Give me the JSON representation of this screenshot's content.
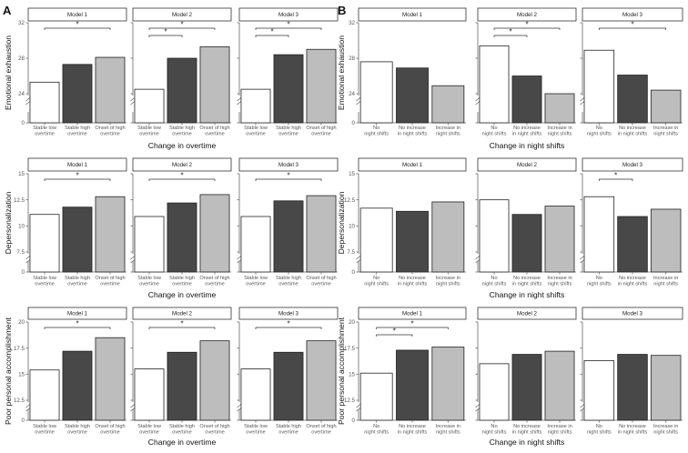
{
  "figure": {
    "panel_labels": [
      "A",
      "B"
    ],
    "colors": {
      "white": "#ffffff",
      "dark": "#484848",
      "light": "#bdbdbd",
      "axis": "#666666"
    }
  },
  "chart_data": [
    {
      "type": "bar",
      "panel": "A",
      "model": "Model 1",
      "ylabel": "Emotional exhaustion",
      "xlabel": "",
      "categories": [
        "Stable low overtime",
        "Stable high overtime",
        "Onset of high overtime"
      ],
      "values": [
        25.3,
        27.3,
        28.1
      ],
      "ylim": [
        0,
        32
      ],
      "yticks": [
        0,
        24,
        28,
        32
      ],
      "significance": [
        {
          "from": 0,
          "to": 2,
          "label": "*"
        }
      ]
    },
    {
      "type": "bar",
      "panel": "A",
      "model": "Model 2",
      "ylabel": "",
      "xlabel": "Change in overtime",
      "categories": [
        "Stable low overtime",
        "Stable high overtime",
        "Onset of high overtime"
      ],
      "values": [
        24.5,
        28.0,
        29.3
      ],
      "ylim": [
        0,
        32
      ],
      "yticks": [],
      "significance": [
        {
          "from": 0,
          "to": 1,
          "label": "*"
        },
        {
          "from": 0,
          "to": 2,
          "label": "*"
        }
      ]
    },
    {
      "type": "bar",
      "panel": "A",
      "model": "Model 3",
      "ylabel": "",
      "xlabel": "",
      "categories": [
        "Stable low overtime",
        "Stable high overtime",
        "Onset of high overtime"
      ],
      "values": [
        24.5,
        28.4,
        29.0
      ],
      "ylim": [
        0,
        32
      ],
      "yticks": [],
      "significance": [
        {
          "from": 0,
          "to": 1,
          "label": "*"
        },
        {
          "from": 0,
          "to": 2,
          "label": "*"
        }
      ]
    },
    {
      "type": "bar",
      "panel": "B",
      "model": "Model 1",
      "ylabel": "Emotional exhaustion",
      "xlabel": "",
      "categories": [
        "No night shifts",
        "No increase in night shifts",
        "Increase in night shifts"
      ],
      "values": [
        27.6,
        26.9,
        24.9
      ],
      "ylim": [
        0,
        32
      ],
      "yticks": [
        0,
        24,
        28,
        32
      ],
      "significance": []
    },
    {
      "type": "bar",
      "panel": "B",
      "model": "Model 2",
      "ylabel": "",
      "xlabel": "Change in night shifts",
      "categories": [
        "No night shifts",
        "No increase in night shifts",
        "Increase in night shifts"
      ],
      "values": [
        29.4,
        26.0,
        24.0
      ],
      "ylim": [
        0,
        32
      ],
      "yticks": [],
      "significance": [
        {
          "from": 0,
          "to": 1,
          "label": "*"
        },
        {
          "from": 0,
          "to": 2,
          "label": "*"
        }
      ]
    },
    {
      "type": "bar",
      "panel": "B",
      "model": "Model 3",
      "ylabel": "",
      "xlabel": "",
      "categories": [
        "No night shifts",
        "No increase in night shifts",
        "Increase in night shifts"
      ],
      "values": [
        28.9,
        26.1,
        24.4
      ],
      "ylim": [
        0,
        32
      ],
      "yticks": [],
      "significance": [
        {
          "from": 0,
          "to": 2,
          "label": "*"
        }
      ]
    },
    {
      "type": "bar",
      "panel": "A",
      "model": "Model 1",
      "ylabel": "Depersonalization",
      "xlabel": "",
      "categories": [
        "Stable low overtime",
        "Stable high overtime",
        "Onset of high overtime"
      ],
      "values": [
        11.1,
        11.8,
        12.8
      ],
      "ylim": [
        0,
        15
      ],
      "yticks": [
        0,
        7.5,
        10,
        12.5,
        15
      ],
      "significance": [
        {
          "from": 0,
          "to": 2,
          "label": "*"
        }
      ]
    },
    {
      "type": "bar",
      "panel": "A",
      "model": "Model 2",
      "ylabel": "",
      "xlabel": "Change in overtime",
      "categories": [
        "Stable low overtime",
        "Stable high overtime",
        "Onset of high overtime"
      ],
      "values": [
        10.9,
        12.2,
        13.0
      ],
      "ylim": [
        0,
        15
      ],
      "yticks": [],
      "significance": [
        {
          "from": 0,
          "to": 2,
          "label": "*"
        }
      ]
    },
    {
      "type": "bar",
      "panel": "A",
      "model": "Model 3",
      "ylabel": "",
      "xlabel": "",
      "categories": [
        "Stable low overtime",
        "Stable high overtime",
        "Onset of high overtime"
      ],
      "values": [
        10.9,
        12.4,
        12.9
      ],
      "ylim": [
        0,
        15
      ],
      "yticks": [],
      "significance": [
        {
          "from": 0,
          "to": 2,
          "label": "*"
        }
      ]
    },
    {
      "type": "bar",
      "panel": "B",
      "model": "Model 1",
      "ylabel": "Depersonalization",
      "xlabel": "",
      "categories": [
        "No night shifts",
        "No increase in night shifts",
        "Increase in night shifts"
      ],
      "values": [
        11.7,
        11.4,
        12.3
      ],
      "ylim": [
        0,
        15
      ],
      "yticks": [
        0,
        7.5,
        10,
        12.5,
        15
      ],
      "significance": []
    },
    {
      "type": "bar",
      "panel": "B",
      "model": "Model 2",
      "ylabel": "",
      "xlabel": "Change in night shifts",
      "categories": [
        "No night shifts",
        "No increase in night shifts",
        "Increase in night shifts"
      ],
      "values": [
        12.5,
        11.1,
        11.9
      ],
      "ylim": [
        0,
        15
      ],
      "yticks": [],
      "significance": []
    },
    {
      "type": "bar",
      "panel": "B",
      "model": "Model 3",
      "ylabel": "",
      "xlabel": "",
      "categories": [
        "No night shifts",
        "No increase in night shifts",
        "Increase in night shifts"
      ],
      "values": [
        12.8,
        10.9,
        11.6
      ],
      "ylim": [
        0,
        15
      ],
      "yticks": [],
      "significance": [
        {
          "from": 0,
          "to": 1,
          "label": "*"
        }
      ]
    },
    {
      "type": "bar",
      "panel": "A",
      "model": "Model 1",
      "ylabel": "Poor personal accomplishment",
      "xlabel": "",
      "categories": [
        "Stable low overtime",
        "Stable high overtime",
        "Onset of high overtime"
      ],
      "values": [
        15.4,
        17.2,
        18.5
      ],
      "ylim": [
        0,
        20
      ],
      "yticks": [
        0,
        12.5,
        15,
        17.5,
        20
      ],
      "significance": [
        {
          "from": 0,
          "to": 2,
          "label": "*"
        }
      ]
    },
    {
      "type": "bar",
      "panel": "A",
      "model": "Model 2",
      "ylabel": "",
      "xlabel": "Change in overtime",
      "categories": [
        "Stable low overtime",
        "Stable high overtime",
        "Onset of high overtime"
      ],
      "values": [
        15.5,
        17.1,
        18.2
      ],
      "ylim": [
        0,
        20
      ],
      "yticks": [],
      "significance": [
        {
          "from": 0,
          "to": 2,
          "label": "*"
        }
      ]
    },
    {
      "type": "bar",
      "panel": "A",
      "model": "Model 3",
      "ylabel": "",
      "xlabel": "",
      "categories": [
        "Stable low overtime",
        "Stable high overtime",
        "Onset of high overtime"
      ],
      "values": [
        15.5,
        17.1,
        18.2
      ],
      "ylim": [
        0,
        20
      ],
      "yticks": [],
      "significance": [
        {
          "from": 0,
          "to": 2,
          "label": "*"
        }
      ]
    },
    {
      "type": "bar",
      "panel": "B",
      "model": "Model 1",
      "ylabel": "Poor personal accomplishment",
      "xlabel": "",
      "categories": [
        "No night shifts",
        "No increase in night shifts",
        "Increase in night shifts"
      ],
      "values": [
        15.1,
        17.3,
        17.6
      ],
      "ylim": [
        0,
        20
      ],
      "yticks": [
        0,
        12.5,
        15,
        17.5,
        20
      ],
      "significance": [
        {
          "from": 0,
          "to": 1,
          "label": "*"
        },
        {
          "from": 0,
          "to": 2,
          "label": "*"
        }
      ]
    },
    {
      "type": "bar",
      "panel": "B",
      "model": "Model 2",
      "ylabel": "",
      "xlabel": "Change in night shifts",
      "categories": [
        "No night shifts",
        "No increase in night shifts",
        "Increase in night shifts"
      ],
      "values": [
        16.0,
        16.9,
        17.2
      ],
      "ylim": [
        0,
        20
      ],
      "yticks": [],
      "significance": []
    },
    {
      "type": "bar",
      "panel": "B",
      "model": "Model 3",
      "ylabel": "",
      "xlabel": "",
      "categories": [
        "No night shifts",
        "No increase in night shifts",
        "Increase in night shifts"
      ],
      "values": [
        16.3,
        16.9,
        16.8
      ],
      "ylim": [
        0,
        20
      ],
      "yticks": [],
      "significance": []
    }
  ]
}
